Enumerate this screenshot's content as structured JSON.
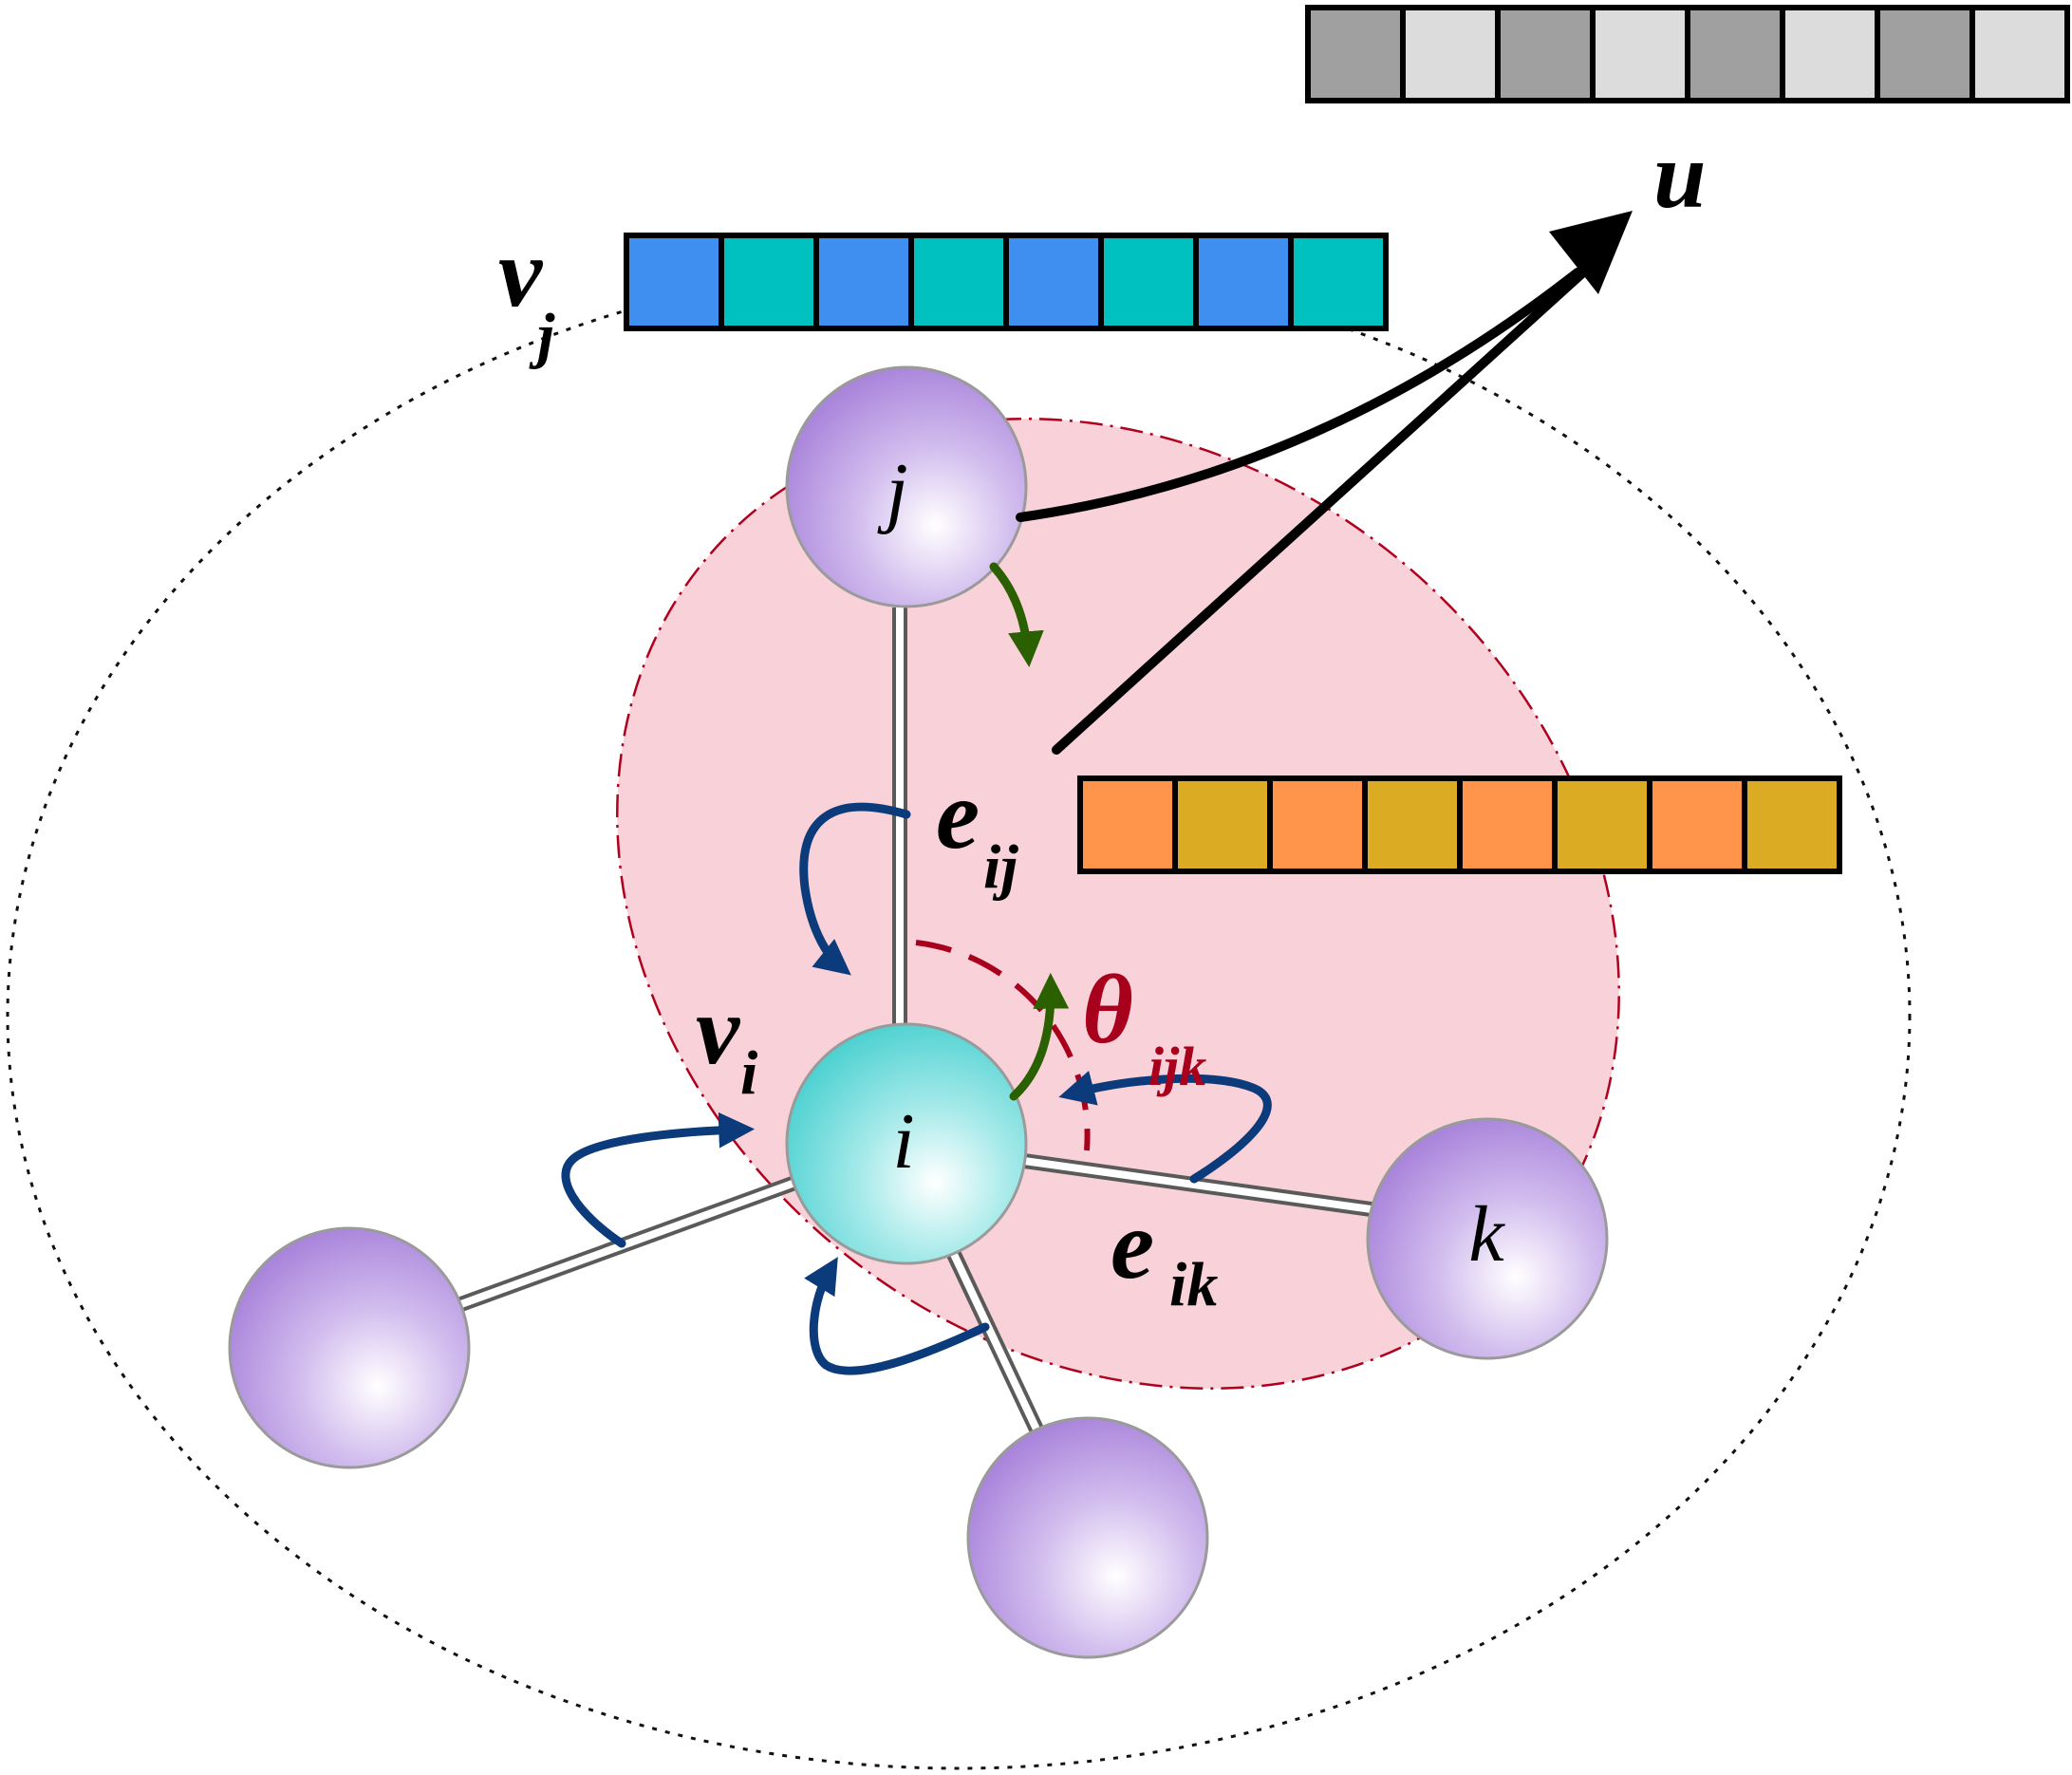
{
  "labels": {
    "u": "u",
    "v_j_base": "v",
    "v_j_sub": "j",
    "v_i_base": "v",
    "v_i_sub": "i",
    "e_ij_base": "e",
    "e_ij_sub": "ij",
    "e_ik_base": "e",
    "e_ik_sub": "ik",
    "theta_base": "θ",
    "theta_sub": "ijk",
    "node_i": "i",
    "node_j": "j",
    "node_k": "k"
  },
  "vectors": {
    "u": {
      "colors": [
        "#a0a0a0",
        "#dcdcdc",
        "#a0a0a0",
        "#dcdcdc",
        "#a0a0a0",
        "#dcdcdc",
        "#a0a0a0",
        "#dcdcdc"
      ]
    },
    "v_j": {
      "colors": [
        "#3e8ff0",
        "#00c0c0",
        "#3e8ff0",
        "#00c0c0",
        "#3e8ff0",
        "#00c0c0",
        "#3e8ff0",
        "#00c0c0"
      ]
    },
    "e_ij": {
      "colors": [
        "#ff944a",
        "#dbab24",
        "#ff944a",
        "#dbab24",
        "#ff944a",
        "#dbab24",
        "#ff944a",
        "#dbab24"
      ]
    }
  },
  "colors": {
    "atom_purple": "#a57fd9",
    "atom_cyan": "#47cfcf",
    "pink_region": "#f9d2d9",
    "region_outline": "#b0001e",
    "angle": "#a8001c",
    "blue_arrows": "#0b3b7a",
    "green_arrows": "#2b6000",
    "black": "#000000"
  }
}
